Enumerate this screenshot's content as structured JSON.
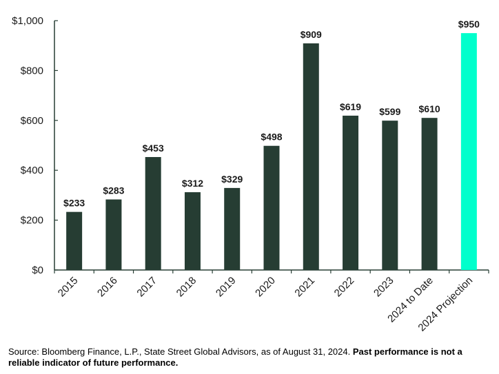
{
  "chart_data": {
    "type": "bar",
    "categories": [
      "2015",
      "2016",
      "2017",
      "2018",
      "2019",
      "2020",
      "2021",
      "2022",
      "2023",
      "2024 to Date",
      "2024 Projection"
    ],
    "values": [
      233,
      283,
      453,
      312,
      329,
      498,
      909,
      619,
      599,
      610,
      950
    ],
    "data_labels": [
      "$233",
      "$283",
      "$453",
      "$312",
      "$329",
      "$498",
      "$909",
      "$619",
      "$599",
      "$610",
      "$950"
    ],
    "y_ticks": [
      0,
      200,
      400,
      600,
      800,
      1000
    ],
    "y_tick_labels": [
      "$0",
      "$200",
      "$400",
      "$600",
      "$800",
      "$1,000"
    ],
    "ylim": [
      0,
      1000
    ],
    "grid": false,
    "legend": "none",
    "colors": {
      "default": "#263D33",
      "highlight": "#00FFCC",
      "highlight_category": "2024 Projection"
    }
  },
  "footer": {
    "source": "Source: Bloomberg Finance, L.P., State Street Global Advisors, as of August 31, 2024. ",
    "disclaimer": "Past performance is not a reliable indicator of future performance."
  }
}
